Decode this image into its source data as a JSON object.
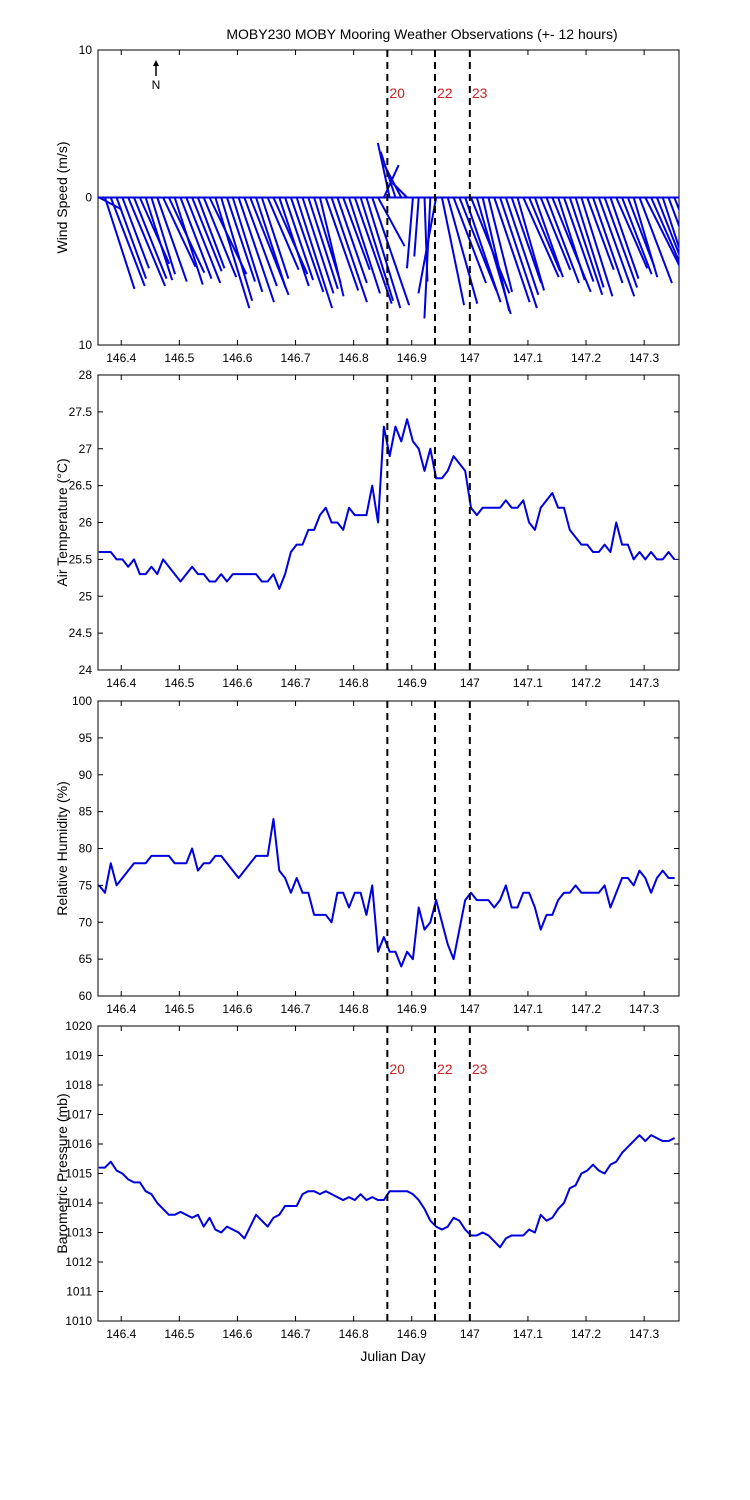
{
  "title": "MOBY230 MOBY Mooring Weather Observations (+- 12 hours)",
  "xlabel": "Julian Day",
  "north_label": "N",
  "colors": {
    "data": "#0000dd",
    "marker_text": "#cc2222",
    "axes": "#000000"
  },
  "markers": [
    {
      "label": "20",
      "x": 146.858
    },
    {
      "label": "22",
      "x": 146.94
    },
    {
      "label": "23",
      "x": 147.0
    }
  ],
  "x_ticks": [
    "146.4",
    "146.5",
    "146.6",
    "146.7",
    "146.8",
    "146.9",
    "147",
    "147.1",
    "147.2",
    "147.3"
  ],
  "chart_data": [
    {
      "type": "line",
      "id": "wind",
      "ylabel": "Wind Speed (m/s)",
      "xlim": [
        146.36,
        147.36
      ],
      "ylim": [
        -10,
        10
      ],
      "y_ticks": [
        "10",
        "0",
        "10"
      ],
      "show_marker_labels": true,
      "series": [
        {
          "kind": "wind-vectors",
          "x": [
            146.362,
            146.372,
            146.382,
            146.392,
            146.402,
            146.412,
            146.422,
            146.432,
            146.442,
            146.452,
            146.462,
            146.472,
            146.482,
            146.492,
            146.502,
            146.512,
            146.522,
            146.532,
            146.542,
            146.552,
            146.562,
            146.572,
            146.582,
            146.592,
            146.602,
            146.612,
            146.622,
            146.632,
            146.642,
            146.652,
            146.662,
            146.672,
            146.682,
            146.692,
            146.702,
            146.712,
            146.722,
            146.732,
            146.742,
            146.752,
            146.762,
            146.772,
            146.782,
            146.792,
            146.802,
            146.812,
            146.822,
            146.832,
            146.842,
            146.852,
            146.862,
            146.872,
            146.882,
            146.892,
            146.902,
            146.912,
            146.922,
            146.932,
            146.942,
            146.952,
            146.962,
            146.972,
            146.982,
            146.992,
            147.002,
            147.012,
            147.022,
            147.032,
            147.042,
            147.052,
            147.062,
            147.072,
            147.082,
            147.092,
            147.102,
            147.112,
            147.122,
            147.132,
            147.142,
            147.152,
            147.162,
            147.172,
            147.182,
            147.192,
            147.202,
            147.212,
            147.222,
            147.232,
            147.242,
            147.252,
            147.262,
            147.272,
            147.282,
            147.292,
            147.302,
            147.312,
            147.322,
            147.332,
            147.342,
            147.352
          ],
          "u": [
            1.5,
            2.0,
            2.3,
            2.0,
            1.8,
            2.5,
            2.2,
            2.0,
            1.8,
            1.6,
            2.0,
            2.2,
            2.4,
            1.9,
            2.1,
            2.3,
            2.0,
            1.8,
            2.2,
            2.5,
            2.3,
            2.1,
            1.9,
            2.0,
            2.4,
            2.2,
            2.6,
            2.0,
            1.8,
            2.1,
            2.3,
            2.0,
            1.9,
            2.2,
            2.4,
            2.1,
            2.0,
            1.8,
            1.6,
            2.2,
            2.4,
            2.0,
            1.8,
            2.1,
            2.5,
            2.2,
            2.3,
            2.5,
            1.8,
            1.0,
            -0.8,
            -1.0,
            -1.2,
            -1.0,
            -0.4,
            -0.3,
            0.2,
            -0.4,
            -1.2,
            1.5,
            2.0,
            2.2,
            2.5,
            2.4,
            2.6,
            2.3,
            1.8,
            1.6,
            2.4,
            2.5,
            2.2,
            2.0,
            1.8,
            2.4,
            2.1,
            1.9,
            2.0,
            2.2,
            2.6,
            1.8,
            2.0,
            2.2,
            1.9,
            2.1,
            1.8,
            2.0,
            2.4,
            2.2,
            1.9,
            2.1,
            2.0,
            1.8,
            1.6,
            2.2,
            2.4,
            2.2,
            2.0,
            1.8,
            1.6,
            1.9
          ],
          "v": [
            -0.8,
            -6.2,
            -6.0,
            -5.5,
            -4.8,
            -6.0,
            -5.5,
            -4.5,
            -5.6,
            -5.2,
            -5.7,
            -4.7,
            -5.1,
            -5.9,
            -5.5,
            -5.8,
            -5.0,
            -4.8,
            -5.4,
            -5.2,
            -7.5,
            -7.0,
            -5.7,
            -6.4,
            -7.1,
            -6.0,
            -6.6,
            -6.1,
            -5.5,
            -4.9,
            -5.2,
            -6.0,
            -5.6,
            -6.4,
            -7.5,
            -6.5,
            -6.2,
            -5.8,
            -6.7,
            -6.3,
            -7.1,
            -5.8,
            -4.9,
            -6.5,
            -7.2,
            -7.0,
            -7.5,
            -7.3,
            -3.3,
            2.2,
            3.7,
            3.1,
            2.3,
            1.0,
            -4.8,
            -4.0,
            -5.7,
            -8.2,
            -6.5,
            -7.3,
            -7.2,
            -5.8,
            -6.3,
            -7.1,
            -6.5,
            -7.9,
            -7.7,
            -6.4,
            -7.1,
            -7.5,
            -6.6,
            -5.8,
            -6.3,
            -5.4,
            -5.0,
            -5.4,
            -4.9,
            -5.8,
            -6.4,
            -5.6,
            -5.7,
            -6.6,
            -6.1,
            -6.7,
            -4.9,
            -5.8,
            -6.7,
            -6.1,
            -5.5,
            -4.8,
            -5.2,
            -4.7,
            -5.4,
            -5.8,
            -4.8,
            -5.0,
            -5.1,
            -5.5,
            -4.3,
            -4.8
          ]
        }
      ]
    },
    {
      "type": "line",
      "id": "airtemp",
      "ylabel": "Air Temperature (°C)",
      "xlim": [
        146.36,
        147.36
      ],
      "ylim": [
        24,
        28
      ],
      "y_ticks": [
        "24",
        "24.5",
        "25",
        "25.5",
        "26",
        "26.5",
        "27",
        "27.5",
        "28"
      ],
      "show_marker_labels": false,
      "series": [
        {
          "kind": "line",
          "x": [
            146.362,
            146.372,
            146.382,
            146.392,
            146.402,
            146.412,
            146.422,
            146.432,
            146.442,
            146.452,
            146.462,
            146.472,
            146.482,
            146.492,
            146.502,
            146.512,
            146.522,
            146.532,
            146.542,
            146.552,
            146.562,
            146.572,
            146.582,
            146.592,
            146.602,
            146.612,
            146.622,
            146.632,
            146.642,
            146.652,
            146.662,
            146.672,
            146.682,
            146.692,
            146.702,
            146.712,
            146.722,
            146.732,
            146.742,
            146.752,
            146.762,
            146.772,
            146.782,
            146.792,
            146.802,
            146.812,
            146.822,
            146.832,
            146.842,
            146.852,
            146.862,
            146.872,
            146.882,
            146.892,
            146.902,
            146.912,
            146.922,
            146.932,
            146.942,
            146.952,
            146.962,
            146.972,
            146.982,
            146.992,
            147.002,
            147.012,
            147.022,
            147.032,
            147.042,
            147.052,
            147.062,
            147.072,
            147.082,
            147.092,
            147.102,
            147.112,
            147.122,
            147.132,
            147.142,
            147.152,
            147.162,
            147.172,
            147.182,
            147.192,
            147.202,
            147.212,
            147.222,
            147.232,
            147.242,
            147.252,
            147.262,
            147.272,
            147.282,
            147.292,
            147.302,
            147.312,
            147.322,
            147.332,
            147.342,
            147.352
          ],
          "values": [
            25.6,
            25.6,
            25.6,
            25.5,
            25.5,
            25.4,
            25.5,
            25.3,
            25.3,
            25.4,
            25.3,
            25.5,
            25.4,
            25.3,
            25.2,
            25.3,
            25.4,
            25.3,
            25.3,
            25.2,
            25.2,
            25.3,
            25.2,
            25.3,
            25.3,
            25.3,
            25.3,
            25.3,
            25.2,
            25.2,
            25.3,
            25.1,
            25.3,
            25.6,
            25.7,
            25.7,
            25.9,
            25.9,
            26.1,
            26.2,
            26.0,
            26.0,
            25.9,
            26.2,
            26.1,
            26.1,
            26.1,
            26.5,
            26.0,
            27.3,
            26.9,
            27.3,
            27.1,
            27.4,
            27.1,
            27.0,
            26.7,
            27.0,
            26.6,
            26.6,
            26.7,
            26.9,
            26.8,
            26.7,
            26.2,
            26.1,
            26.2,
            26.2,
            26.2,
            26.2,
            26.3,
            26.2,
            26.2,
            26.3,
            26.0,
            25.9,
            26.2,
            26.3,
            26.4,
            26.2,
            26.2,
            25.9,
            25.8,
            25.7,
            25.7,
            25.6,
            25.6,
            25.7,
            25.6,
            26.0,
            25.7,
            25.7,
            25.5,
            25.6,
            25.5,
            25.6,
            25.5,
            25.5,
            25.6,
            25.5
          ]
        }
      ]
    },
    {
      "type": "line",
      "id": "humidity",
      "ylabel": "Relative Humidity (%)",
      "xlim": [
        146.36,
        147.36
      ],
      "ylim": [
        60,
        100
      ],
      "y_ticks": [
        "60",
        "65",
        "70",
        "75",
        "80",
        "85",
        "90",
        "95",
        "100"
      ],
      "show_marker_labels": false,
      "series": [
        {
          "kind": "line",
          "x": [
            146.362,
            146.372,
            146.382,
            146.392,
            146.402,
            146.412,
            146.422,
            146.432,
            146.442,
            146.452,
            146.462,
            146.472,
            146.482,
            146.492,
            146.502,
            146.512,
            146.522,
            146.532,
            146.542,
            146.552,
            146.562,
            146.572,
            146.582,
            146.592,
            146.602,
            146.612,
            146.622,
            146.632,
            146.642,
            146.652,
            146.662,
            146.672,
            146.682,
            146.692,
            146.702,
            146.712,
            146.722,
            146.732,
            146.742,
            146.752,
            146.762,
            146.772,
            146.782,
            146.792,
            146.802,
            146.812,
            146.822,
            146.832,
            146.842,
            146.852,
            146.862,
            146.872,
            146.882,
            146.892,
            146.902,
            146.912,
            146.922,
            146.932,
            146.942,
            146.952,
            146.962,
            146.972,
            146.982,
            146.992,
            147.002,
            147.012,
            147.022,
            147.032,
            147.042,
            147.052,
            147.062,
            147.072,
            147.082,
            147.092,
            147.102,
            147.112,
            147.122,
            147.132,
            147.142,
            147.152,
            147.162,
            147.172,
            147.182,
            147.192,
            147.202,
            147.212,
            147.222,
            147.232,
            147.242,
            147.252,
            147.262,
            147.272,
            147.282,
            147.292,
            147.302,
            147.312,
            147.322,
            147.332,
            147.342,
            147.352
          ],
          "values": [
            75,
            74,
            78,
            75,
            76,
            77,
            78,
            78,
            78,
            79,
            79,
            79,
            79,
            78,
            78,
            78,
            80,
            77,
            78,
            78,
            79,
            79,
            78,
            77,
            76,
            77,
            78,
            79,
            79,
            79,
            84,
            77,
            76,
            74,
            76,
            74,
            74,
            71,
            71,
            71,
            70,
            74,
            74,
            72,
            74,
            74,
            71,
            75,
            66,
            68,
            66,
            66,
            64,
            66,
            65,
            72,
            69,
            70,
            73,
            70,
            67,
            65,
            69,
            73,
            74,
            73,
            73,
            73,
            72,
            73,
            75,
            72,
            72,
            74,
            74,
            72,
            69,
            71,
            71,
            73,
            74,
            74,
            75,
            74,
            74,
            74,
            74,
            75,
            72,
            74,
            76,
            76,
            75,
            77,
            76,
            74,
            76,
            77,
            76,
            76
          ]
        }
      ]
    },
    {
      "type": "line",
      "id": "pressure",
      "ylabel": "Barometric Pressure (mb)",
      "xlabel": "Julian Day",
      "xlim": [
        146.36,
        147.36
      ],
      "ylim": [
        1010,
        1020
      ],
      "y_ticks": [
        "1010",
        "1011",
        "1012",
        "1013",
        "1014",
        "1015",
        "1016",
        "1017",
        "1018",
        "1019",
        "1020"
      ],
      "show_marker_labels": true,
      "series": [
        {
          "kind": "line",
          "x": [
            146.362,
            146.372,
            146.382,
            146.392,
            146.402,
            146.412,
            146.422,
            146.432,
            146.442,
            146.452,
            146.462,
            146.472,
            146.482,
            146.492,
            146.502,
            146.512,
            146.522,
            146.532,
            146.542,
            146.552,
            146.562,
            146.572,
            146.582,
            146.592,
            146.602,
            146.612,
            146.622,
            146.632,
            146.642,
            146.652,
            146.662,
            146.672,
            146.682,
            146.692,
            146.702,
            146.712,
            146.722,
            146.732,
            146.742,
            146.752,
            146.762,
            146.772,
            146.782,
            146.792,
            146.802,
            146.812,
            146.822,
            146.832,
            146.842,
            146.852,
            146.862,
            146.872,
            146.882,
            146.892,
            146.902,
            146.912,
            146.922,
            146.932,
            146.942,
            146.952,
            146.962,
            146.972,
            146.982,
            146.992,
            147.002,
            147.012,
            147.022,
            147.032,
            147.042,
            147.052,
            147.062,
            147.072,
            147.082,
            147.092,
            147.102,
            147.112,
            147.122,
            147.132,
            147.142,
            147.152,
            147.162,
            147.172,
            147.182,
            147.192,
            147.202,
            147.212,
            147.222,
            147.232,
            147.242,
            147.252,
            147.262,
            147.272,
            147.282,
            147.292,
            147.302,
            147.312,
            147.322,
            147.332,
            147.342,
            147.352
          ],
          "values": [
            1015.2,
            1015.2,
            1015.4,
            1015.1,
            1015.0,
            1014.8,
            1014.7,
            1014.7,
            1014.4,
            1014.3,
            1014.0,
            1013.8,
            1013.6,
            1013.6,
            1013.7,
            1013.6,
            1013.5,
            1013.6,
            1013.2,
            1013.5,
            1013.1,
            1013.0,
            1013.2,
            1013.1,
            1013.0,
            1012.8,
            1013.2,
            1013.6,
            1013.4,
            1013.2,
            1013.5,
            1013.6,
            1013.9,
            1013.9,
            1013.9,
            1014.3,
            1014.4,
            1014.4,
            1014.3,
            1014.4,
            1014.3,
            1014.2,
            1014.1,
            1014.2,
            1014.1,
            1014.3,
            1014.1,
            1014.2,
            1014.1,
            1014.1,
            1014.4,
            1014.4,
            1014.4,
            1014.4,
            1014.3,
            1014.1,
            1013.8,
            1013.4,
            1013.2,
            1013.1,
            1013.2,
            1013.5,
            1013.4,
            1013.1,
            1012.9,
            1012.9,
            1013.0,
            1012.9,
            1012.7,
            1012.5,
            1012.8,
            1012.9,
            1012.9,
            1012.9,
            1013.1,
            1013.0,
            1013.6,
            1013.4,
            1013.5,
            1013.8,
            1014.0,
            1014.5,
            1014.6,
            1015.0,
            1015.1,
            1015.3,
            1015.1,
            1015.0,
            1015.3,
            1015.4,
            1015.7,
            1015.9,
            1016.1,
            1016.3,
            1016.1,
            1016.3,
            1016.2,
            1016.1,
            1016.1,
            1016.2
          ]
        }
      ]
    }
  ]
}
